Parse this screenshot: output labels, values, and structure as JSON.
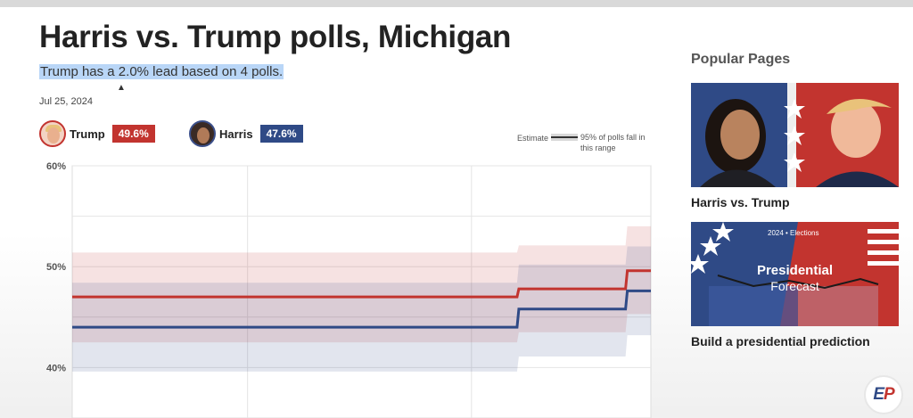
{
  "page": {
    "title": "Harris vs. Trump polls, Michigan",
    "subtitle": "Trump has a 2.0% lead based on 4 polls.",
    "date": "Jul 25, 2024"
  },
  "candidates": [
    {
      "name": "Trump",
      "value": "49.6%",
      "color": "#c2342f"
    },
    {
      "name": "Harris",
      "value": "47.6%",
      "color": "#2f4a86"
    }
  ],
  "legend": {
    "estimate_label": "Estimate",
    "range_label": "95% of polls fall in this range"
  },
  "chart_data": {
    "type": "line",
    "x": [
      0,
      1,
      2,
      3,
      4,
      5,
      6,
      7,
      8,
      9,
      10,
      11,
      12,
      13,
      14,
      15,
      16
    ],
    "y_ticks": [
      "60%",
      "50%",
      "40%"
    ],
    "ylim": [
      35,
      60
    ],
    "series": [
      {
        "name": "Trump",
        "color": "#c2342f",
        "values": [
          47,
          47,
          47,
          47,
          47,
          47,
          47,
          47,
          47,
          47,
          47,
          47,
          47,
          47.8,
          47.8,
          47.8,
          49.6
        ],
        "band_low": [
          42.5,
          42.5,
          42.5,
          42.5,
          42.5,
          42.5,
          42.5,
          42.5,
          42.5,
          42.5,
          42.5,
          42.5,
          42.5,
          43.5,
          43.5,
          43.5,
          45.3
        ],
        "band_high": [
          51.4,
          51.4,
          51.4,
          51.4,
          51.4,
          51.4,
          51.4,
          51.4,
          51.4,
          51.4,
          51.4,
          51.4,
          51.4,
          52.1,
          52.1,
          52.1,
          54.0
        ]
      },
      {
        "name": "Harris",
        "color": "#2f4a86",
        "values": [
          44,
          44,
          44,
          44,
          44,
          44,
          44,
          44,
          44,
          44,
          44,
          44,
          44,
          45.8,
          45.8,
          45.8,
          47.6
        ],
        "band_low": [
          39.6,
          39.6,
          39.6,
          39.6,
          39.6,
          39.6,
          39.6,
          39.6,
          39.6,
          39.6,
          39.6,
          39.6,
          39.6,
          41.1,
          41.1,
          41.1,
          43.2
        ],
        "band_high": [
          48.4,
          48.4,
          48.4,
          48.4,
          48.4,
          48.4,
          48.4,
          48.4,
          48.4,
          48.4,
          48.4,
          48.4,
          48.4,
          50.2,
          50.2,
          50.2,
          52.0
        ]
      }
    ]
  },
  "sidebar": {
    "title": "Popular Pages",
    "cards": [
      {
        "label": "Harris vs. Trump"
      },
      {
        "label": "Build a presidential prediction",
        "image_meta": "2024 • Elections",
        "image_title": "Presidential",
        "image_subtitle": "Forecast"
      }
    ]
  },
  "logo": {
    "left": "E",
    "right": "P"
  }
}
